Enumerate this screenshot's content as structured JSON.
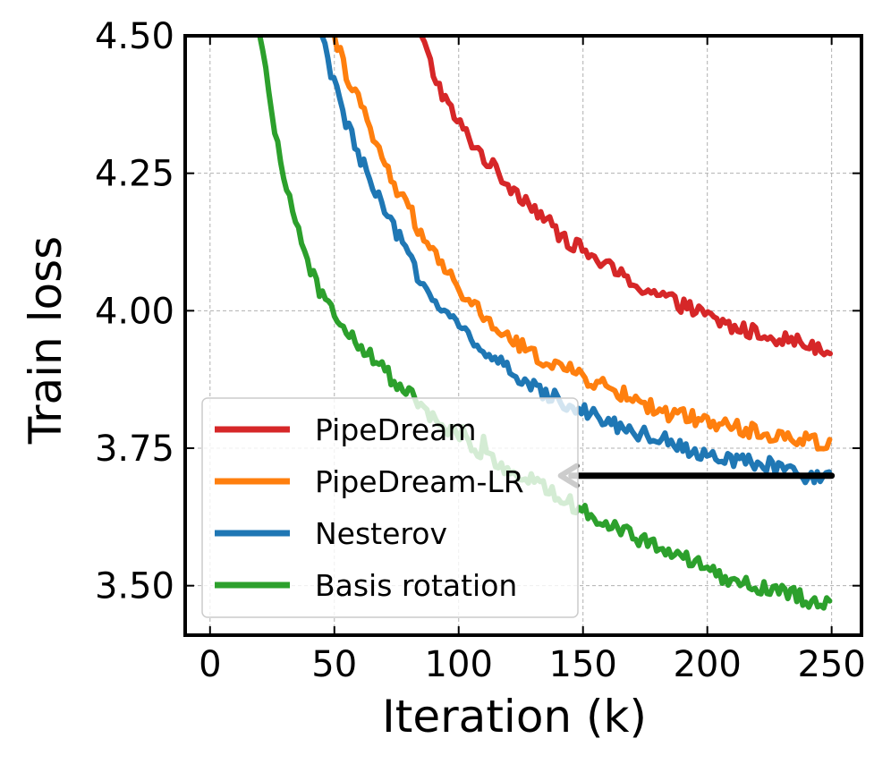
{
  "chart_data": {
    "type": "line",
    "title": "",
    "xlabel": "Iteration (k)",
    "ylabel": "Train loss",
    "xlim": [
      -10,
      262
    ],
    "ylim": [
      3.41,
      4.5
    ],
    "xticks": [
      0,
      50,
      100,
      150,
      200,
      250
    ],
    "xtick_labels": [
      "0",
      "50",
      "100",
      "150",
      "200",
      "250"
    ],
    "yticks": [
      3.5,
      3.75,
      4.0,
      4.25,
      4.5
    ],
    "ytick_labels": [
      "3.50",
      "3.75",
      "4.00",
      "4.25",
      "4.50"
    ],
    "grid": true,
    "legend_position": "lower-left",
    "series": [
      {
        "name": "PipeDream",
        "color": "#d62728",
        "x": [
          85,
          90,
          95,
          100,
          110,
          120,
          130,
          140,
          150,
          160,
          170,
          180,
          190,
          200,
          210,
          220,
          230,
          240,
          250
        ],
        "y": [
          4.5,
          4.43,
          4.38,
          4.34,
          4.28,
          4.23,
          4.19,
          4.14,
          4.11,
          4.08,
          4.05,
          4.03,
          4.01,
          3.99,
          3.97,
          3.96,
          3.95,
          3.94,
          3.93
        ]
      },
      {
        "name": "PipeDream-LR",
        "color": "#ff7f0e",
        "x": [
          50,
          55,
          60,
          65,
          70,
          75,
          80,
          90,
          100,
          110,
          120,
          130,
          140,
          150,
          160,
          170,
          180,
          190,
          200,
          210,
          220,
          230,
          240,
          250
        ],
        "y": [
          4.5,
          4.43,
          4.38,
          4.32,
          4.27,
          4.22,
          4.18,
          4.1,
          4.04,
          3.99,
          3.95,
          3.92,
          3.9,
          3.88,
          3.86,
          3.84,
          3.82,
          3.81,
          3.8,
          3.79,
          3.78,
          3.77,
          3.765,
          3.76
        ]
      },
      {
        "name": "Nesterov",
        "color": "#1f77b4",
        "x": [
          45,
          50,
          55,
          60,
          65,
          70,
          75,
          80,
          90,
          100,
          110,
          120,
          130,
          140,
          150,
          160,
          170,
          180,
          190,
          200,
          210,
          220,
          230,
          240,
          250
        ],
        "y": [
          4.5,
          4.41,
          4.34,
          4.28,
          4.23,
          4.18,
          4.14,
          4.1,
          4.02,
          3.97,
          3.93,
          3.89,
          3.86,
          3.84,
          3.82,
          3.8,
          3.78,
          3.77,
          3.755,
          3.74,
          3.73,
          3.72,
          3.71,
          3.7,
          3.695
        ]
      },
      {
        "name": "Basis rotation",
        "color": "#2ca02c",
        "x": [
          20,
          25,
          30,
          35,
          40,
          45,
          50,
          55,
          60,
          70,
          80,
          90,
          100,
          110,
          120,
          130,
          140,
          150,
          160,
          170,
          180,
          190,
          200,
          210,
          220,
          230,
          240,
          250
        ],
        "y": [
          4.5,
          4.35,
          4.24,
          4.15,
          4.08,
          4.03,
          3.99,
          3.96,
          3.94,
          3.89,
          3.85,
          3.8,
          3.77,
          3.74,
          3.71,
          3.69,
          3.66,
          3.64,
          3.61,
          3.59,
          3.57,
          3.55,
          3.53,
          3.51,
          3.5,
          3.49,
          3.475,
          3.465
        ]
      }
    ],
    "annotations": [
      {
        "type": "arrow",
        "color": "#000000",
        "from": [
          250,
          3.7
        ],
        "to": [
          141,
          3.7
        ]
      }
    ]
  }
}
